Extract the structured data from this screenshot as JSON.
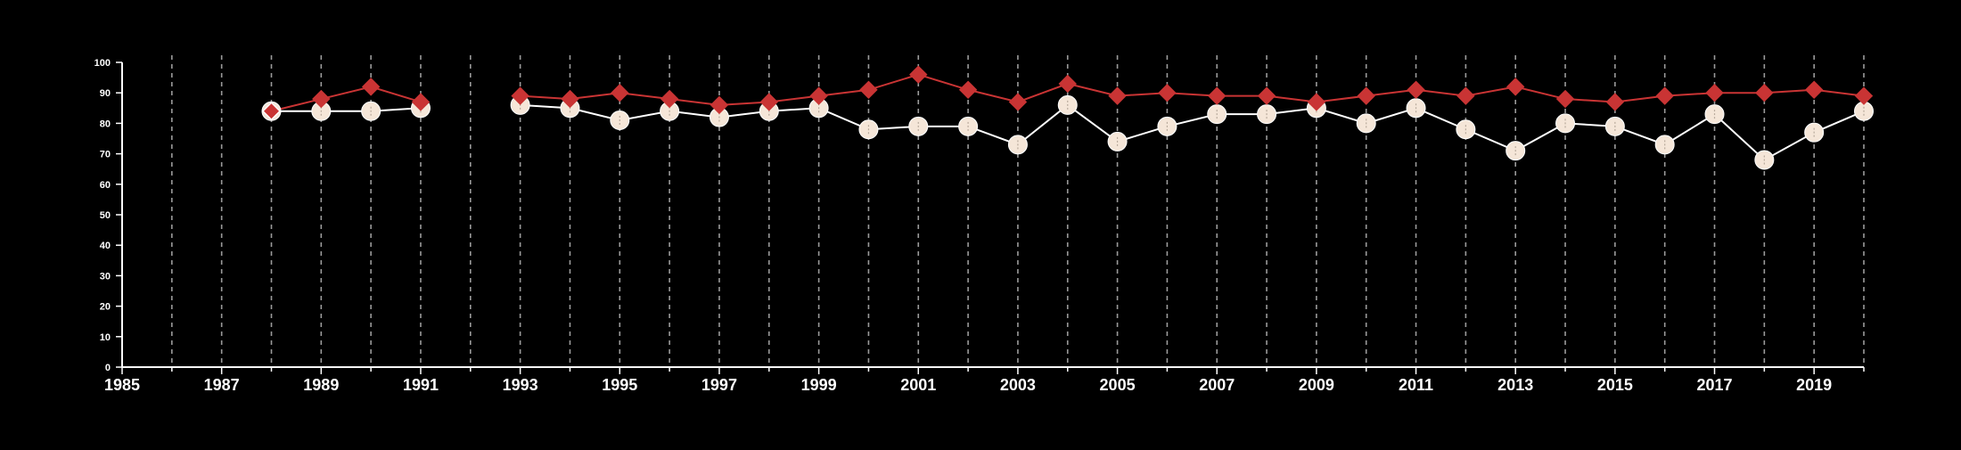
{
  "colors": {
    "background": "#000000",
    "axis": "#ffffff",
    "grid": "#9a9a9a",
    "series_1_marker": "#f5e6d8",
    "series_1_line": "#ffffff",
    "series_2": "#c93434"
  },
  "chart_data": {
    "type": "line",
    "title": "",
    "xlabel": "",
    "ylabel": "",
    "xlim": [
      1985,
      2020
    ],
    "ylim": [
      0,
      100
    ],
    "x_ticks": [
      1985,
      1987,
      1989,
      1991,
      1993,
      1995,
      1997,
      1999,
      2001,
      2003,
      2005,
      2007,
      2009,
      2011,
      2013,
      2015,
      2017,
      2019
    ],
    "y_ticks": [
      0,
      10,
      20,
      30,
      40,
      50,
      60,
      70,
      80,
      90,
      100
    ],
    "grid": "vertical dashed lines at every year",
    "legend": "none",
    "x": [
      1988,
      1989,
      1990,
      1991,
      1993,
      1994,
      1995,
      1996,
      1997,
      1998,
      1999,
      2000,
      2001,
      2002,
      2003,
      2004,
      2005,
      2006,
      2007,
      2008,
      2009,
      2010,
      2011,
      2012,
      2013,
      2014,
      2015,
      2016,
      2017,
      2018,
      2019,
      2020
    ],
    "series": [
      {
        "marker": "circle",
        "values": [
          84,
          84,
          84,
          85,
          86,
          85,
          81,
          84,
          82,
          84,
          85,
          78,
          79,
          79,
          73,
          86,
          74,
          79,
          83,
          83,
          85,
          80,
          85,
          78,
          71,
          80,
          79,
          73,
          83,
          68,
          77,
          84
        ]
      },
      {
        "marker": "diamond",
        "values": [
          84,
          88,
          92,
          87,
          89,
          88,
          90,
          88,
          86,
          87,
          89,
          91,
          96,
          91,
          87,
          93,
          89,
          90,
          89,
          89,
          87,
          89,
          91,
          89,
          92,
          88,
          87,
          89,
          90,
          90,
          91,
          89
        ]
      }
    ]
  }
}
